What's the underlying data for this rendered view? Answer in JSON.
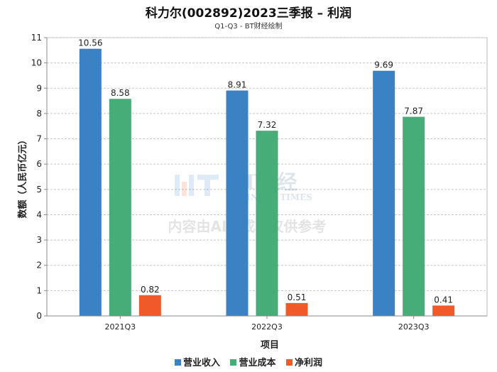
{
  "chart_data": {
    "type": "bar",
    "title": "科力尔(002892)2023三季报 – 利润",
    "subtitle": "Q1-Q3 - BT财经绘制",
    "xlabel": "项目",
    "ylabel": "数额（人民币亿元）",
    "categories": [
      "2021Q3",
      "2022Q3",
      "2023Q3"
    ],
    "ylim": [
      0,
      11
    ],
    "yticks": [
      0,
      1,
      2,
      3,
      4,
      5,
      6,
      7,
      8,
      9,
      10,
      11
    ],
    "series": [
      {
        "name": "营业收入",
        "color": "#3a82c4",
        "values": [
          10.56,
          8.91,
          9.69
        ],
        "labels": [
          "10.56",
          "8.91",
          "9.69"
        ]
      },
      {
        "name": "营业成本",
        "color": "#46ac78",
        "values": [
          8.58,
          7.32,
          7.87
        ],
        "labels": [
          "8.58",
          "7.32",
          "7.87"
        ]
      },
      {
        "name": "净利润",
        "color": "#f05a28",
        "values": [
          0.82,
          0.51,
          0.41
        ],
        "labels": [
          "0.82",
          "0.51",
          "0.41"
        ]
      }
    ],
    "legend": "bottom",
    "grid": true
  },
  "watermark": {
    "logo_text": "BT财经",
    "logo_sub": "BUSINESS TIMES",
    "notice": "内容由AI生成，仅供参考"
  }
}
